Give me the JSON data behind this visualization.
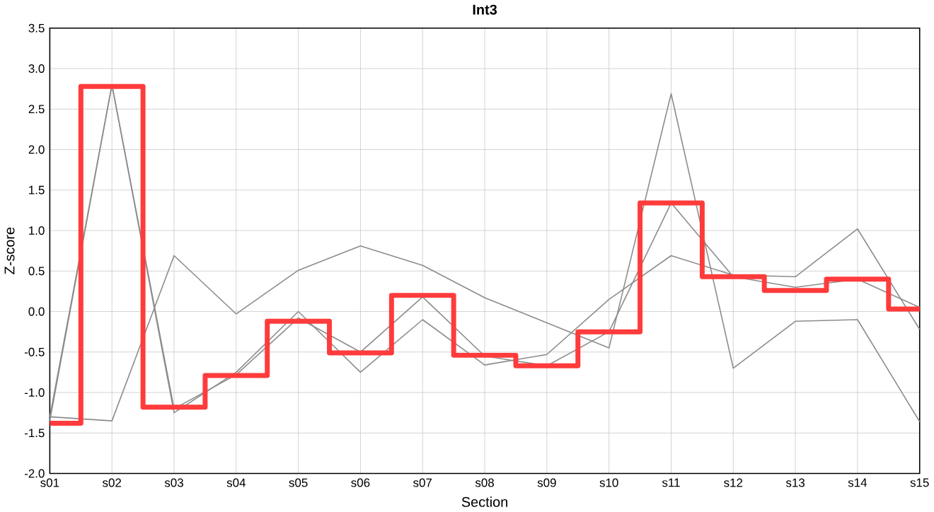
{
  "chart_data": {
    "type": "line",
    "title": "Int3",
    "xlabel": "Section",
    "ylabel": "Z-score",
    "categories": [
      "s01",
      "s02",
      "s03",
      "s04",
      "s05",
      "s06",
      "s07",
      "s08",
      "s09",
      "s10",
      "s11",
      "s12",
      "s13",
      "s14",
      "s15"
    ],
    "ylim": [
      -2,
      3.5
    ],
    "yticks": [
      {
        "value": -2,
        "label": "-2.0"
      },
      {
        "value": -1.5,
        "label": "-1.5"
      },
      {
        "value": -1,
        "label": "-1.0"
      },
      {
        "value": -0.5,
        "label": "-0.5"
      },
      {
        "value": 0,
        "label": "0.0"
      },
      {
        "value": 0.5,
        "label": "0.5"
      },
      {
        "value": 1,
        "label": "1.0"
      },
      {
        "value": 1.5,
        "label": "1.5"
      },
      {
        "value": 2,
        "label": "2.0"
      },
      {
        "value": 2.5,
        "label": "2.5"
      },
      {
        "value": 3,
        "label": "3.0"
      },
      {
        "value": 3.5,
        "label": "3.5"
      }
    ],
    "grid": true,
    "series": [
      {
        "color": "#8c8c8c",
        "values": [
          -1.3,
          -1.35,
          0.69,
          -0.03,
          0.51,
          0.81,
          0.57,
          0.17,
          -0.14,
          -0.45,
          2.69,
          -0.7,
          -0.12,
          -0.1,
          -1.36
        ]
      },
      {
        "color": "#8c8c8c",
        "values": [
          -1.3,
          2.8,
          -1.2,
          -0.78,
          -0.08,
          -0.5,
          0.18,
          -0.55,
          -0.67,
          -0.25,
          1.34,
          0.43,
          0.3,
          0.4,
          0.05
        ]
      },
      {
        "color": "#8c8c8c",
        "values": [
          -1.35,
          2.8,
          -1.25,
          -0.75,
          0.0,
          -0.75,
          -0.1,
          -0.66,
          -0.53,
          0.15,
          0.69,
          0.45,
          0.43,
          1.02,
          -0.22
        ]
      },
      {
        "type": "step",
        "color": "#ff3b3b",
        "values": [
          -1.38,
          2.78,
          -1.18,
          -0.79,
          -0.12,
          -0.51,
          0.2,
          -0.54,
          -0.67,
          -0.25,
          1.34,
          0.43,
          0.26,
          0.4,
          0.03
        ]
      }
    ]
  }
}
